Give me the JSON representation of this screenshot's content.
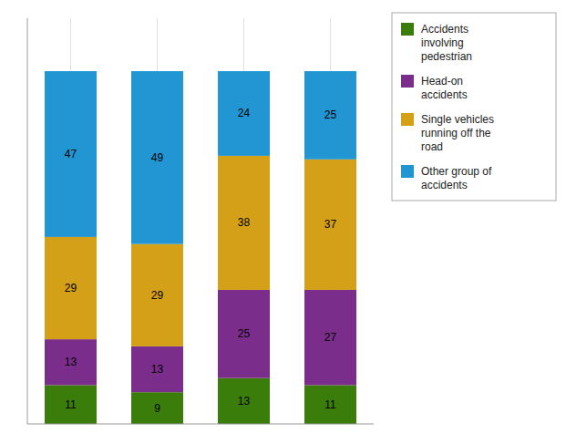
{
  "chart_data": {
    "type": "bar",
    "stacked": true,
    "data_labels": true,
    "grid": true,
    "tick_labels": false,
    "categories": [
      null,
      null,
      null,
      null
    ],
    "ylim": [
      0,
      115
    ],
    "yticks": [],
    "series": [
      {
        "name": "Accidents\ninvolving\npedestrian",
        "color": "#3a7d0a",
        "values": [
          11,
          9,
          13,
          11
        ]
      },
      {
        "name": "Head-on\naccidents",
        "color": "#7b2d8b",
        "values": [
          13,
          13,
          25,
          27
        ]
      },
      {
        "name": "Single vehicles\nrunning off the\nroad",
        "color": "#d4a017",
        "values": [
          29,
          29,
          38,
          37
        ]
      },
      {
        "name": "Other group of\naccidents",
        "color": "#2196d3",
        "values": [
          47,
          49,
          24,
          25
        ]
      }
    ]
  }
}
